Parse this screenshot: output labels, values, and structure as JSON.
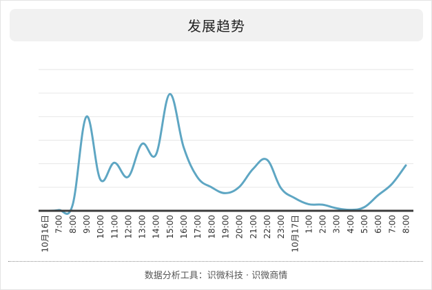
{
  "chart_data": {
    "type": "line",
    "title": "发展趋势",
    "xlabel": "",
    "ylabel": "",
    "categories": [
      "10月16日",
      "7:00",
      "8:00",
      "9:00",
      "10:00",
      "11:00",
      "12:00",
      "13:00",
      "14:00",
      "15:00",
      "16:00",
      "17:00",
      "18:00",
      "19:00",
      "20:00",
      "21:00",
      "22:00",
      "23:00",
      "10月17日",
      "1:00",
      "2:00",
      "3:00",
      "4:00",
      "5:00",
      "6:00",
      "7:00",
      "8:00"
    ],
    "values": [
      0,
      3,
      24,
      400,
      133,
      204,
      144,
      284,
      238,
      496,
      270,
      142,
      100,
      75,
      101,
      178,
      217,
      97,
      54,
      28,
      26,
      11,
      4,
      15,
      66,
      114,
      193
    ],
    "ylim": [
      0,
      600
    ],
    "grid": true,
    "line_color": "#5ea6c3"
  },
  "footer": {
    "text": "数据分析工具：识微科技 · 识微商情"
  }
}
